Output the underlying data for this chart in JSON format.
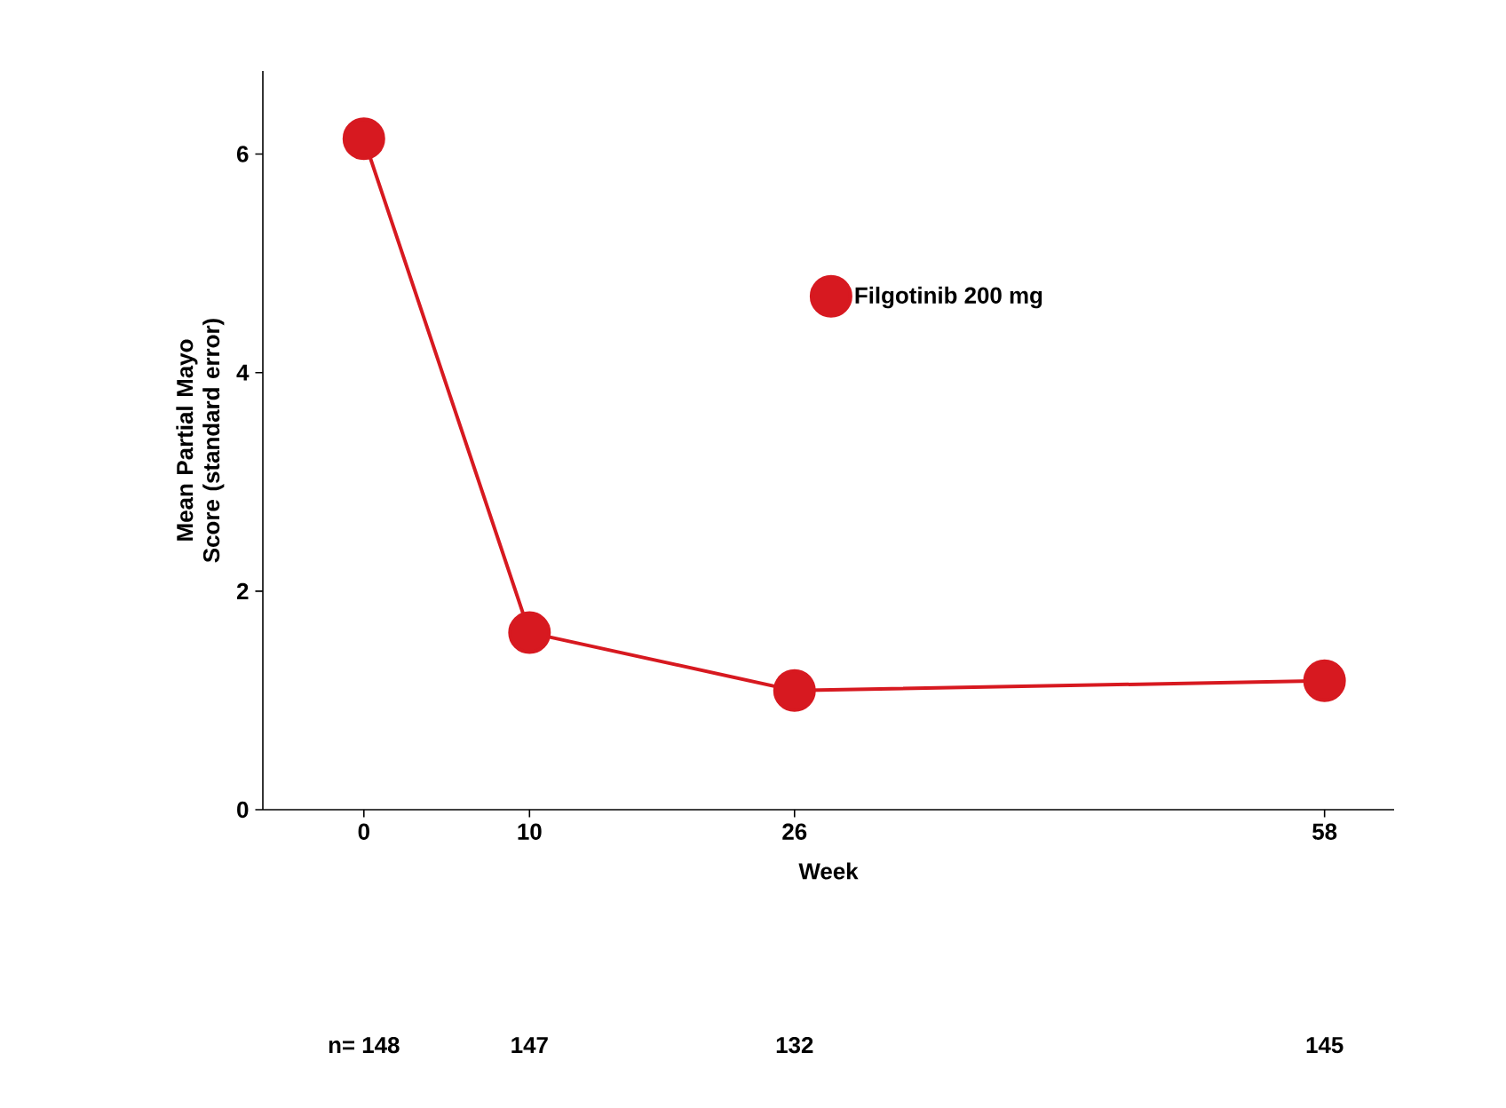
{
  "chart_data": {
    "type": "line",
    "xlabel": "Week",
    "ylabel": "Mean Partial Mayo Score (standard error)",
    "x": [
      0,
      10,
      26,
      58
    ],
    "xlim": [
      -6.1,
      62.2
    ],
    "xticks": [
      0,
      10,
      26,
      58
    ],
    "ylim": [
      0,
      6.76
    ],
    "yticks": [
      0,
      2,
      4,
      6
    ],
    "series": [
      {
        "name": "Filgotinib 200 mg",
        "color": "#d71920",
        "values": [
          6.14,
          1.62,
          1.09,
          1.18
        ]
      }
    ],
    "marker": "circle",
    "legend": "top right",
    "annotations": [
      "n= 148",
      "147",
      "132",
      "145"
    ]
  }
}
